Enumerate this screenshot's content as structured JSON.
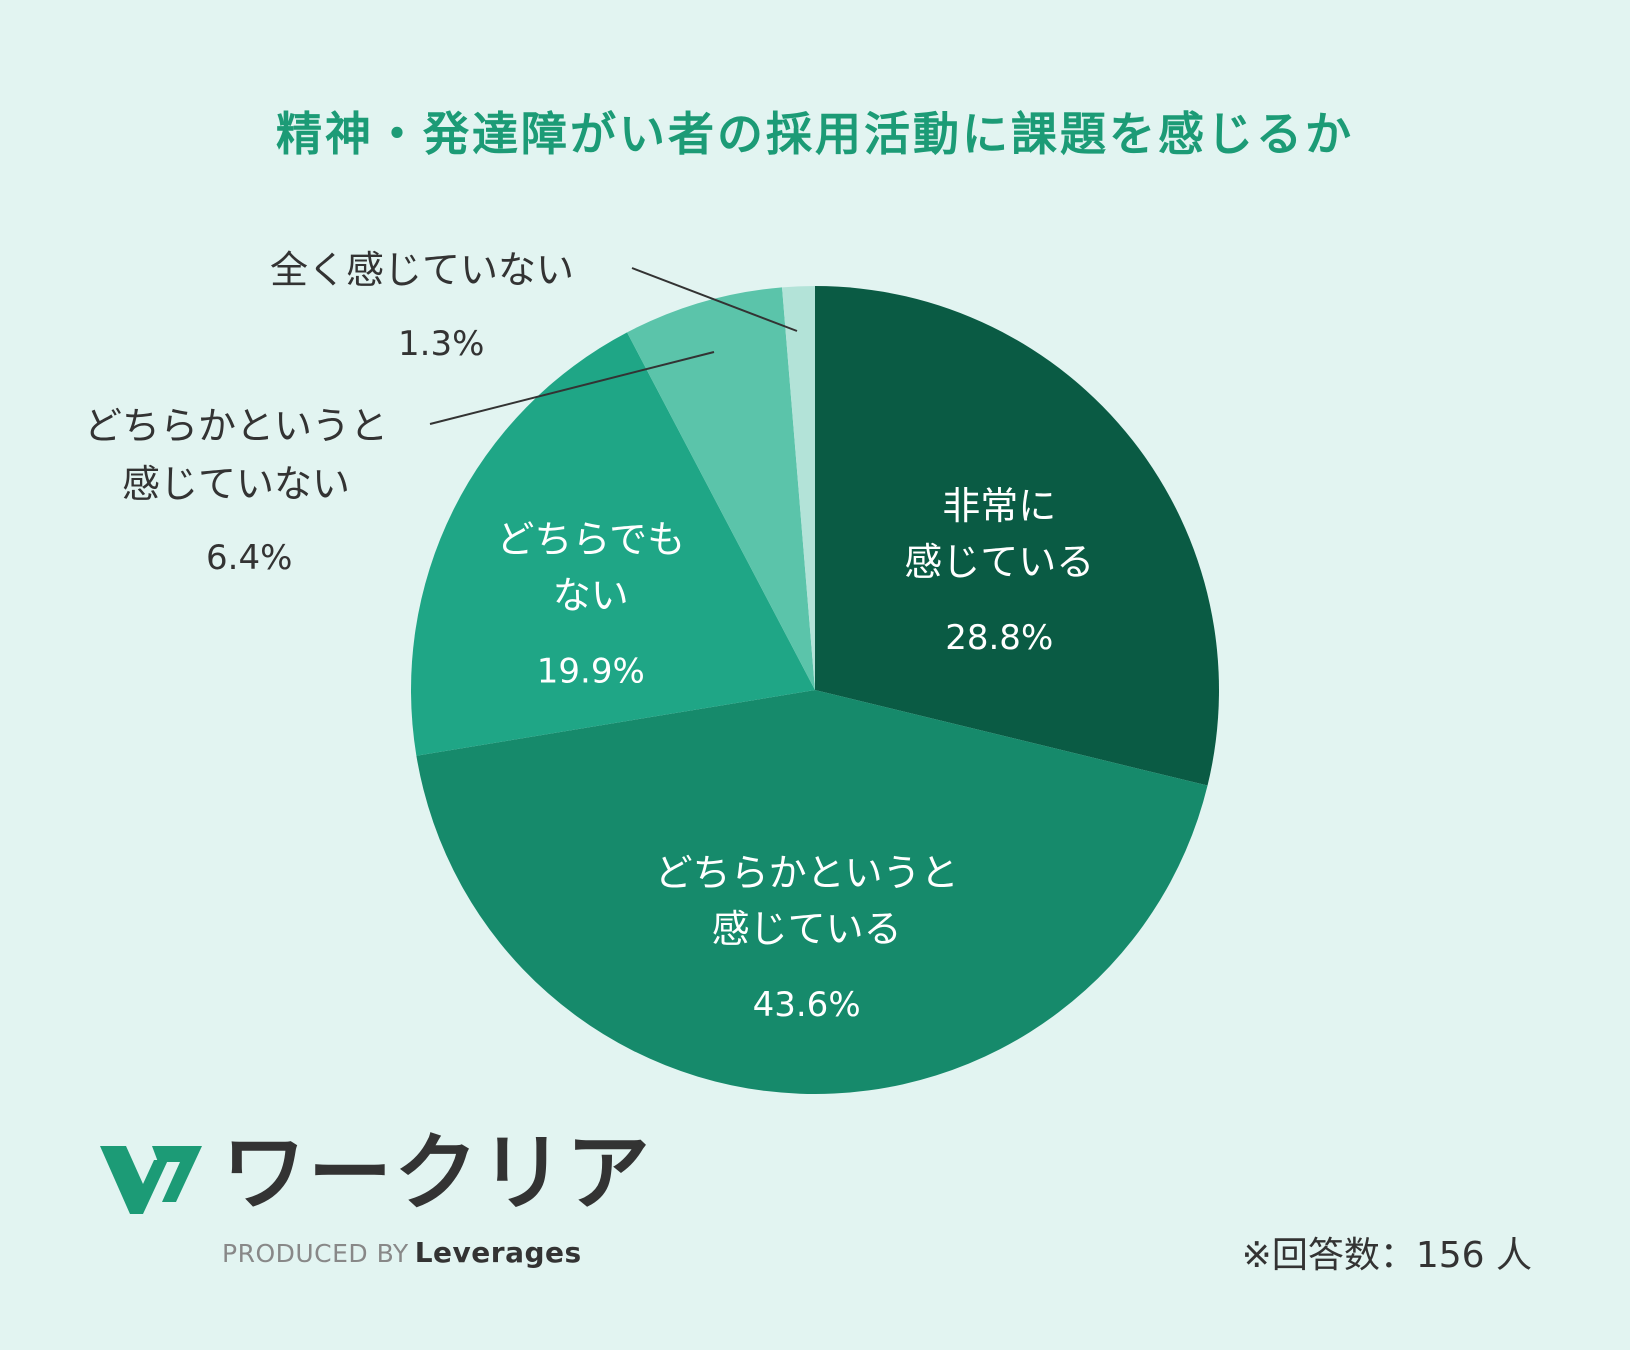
{
  "colors": {
    "background": "#e2f4f1",
    "title": "#1c9b76",
    "text_dark": "#333333"
  },
  "chart_data": {
    "type": "pie",
    "title": "精神・発達障がい者の採用活動に課題を感じるか",
    "slices": [
      {
        "label_lines": [
          "非常に",
          "感じている"
        ],
        "value": 28.8,
        "value_text": "28.8%",
        "color": "#0a5b44"
      },
      {
        "label_lines": [
          "どちらかというと",
          "感じている"
        ],
        "value": 43.6,
        "value_text": "43.6%",
        "color": "#168a6b"
      },
      {
        "label_lines": [
          "どちらでも",
          "ない"
        ],
        "value": 19.9,
        "value_text": "19.9%",
        "color": "#1fa686"
      },
      {
        "label_lines": [
          "どちらかというと",
          "感じていない"
        ],
        "value": 6.4,
        "value_text": "6.4%",
        "color": "#5bc4aa"
      },
      {
        "label_lines": [
          "全く感じていない"
        ],
        "value": 1.3,
        "value_text": "1.3%",
        "color": "#b3e3d8"
      }
    ]
  },
  "logo": {
    "name": "ワークリア",
    "produced_by": "PRODUCED BY",
    "brand": "Leverages"
  },
  "footnote": "※回答数：156 人"
}
